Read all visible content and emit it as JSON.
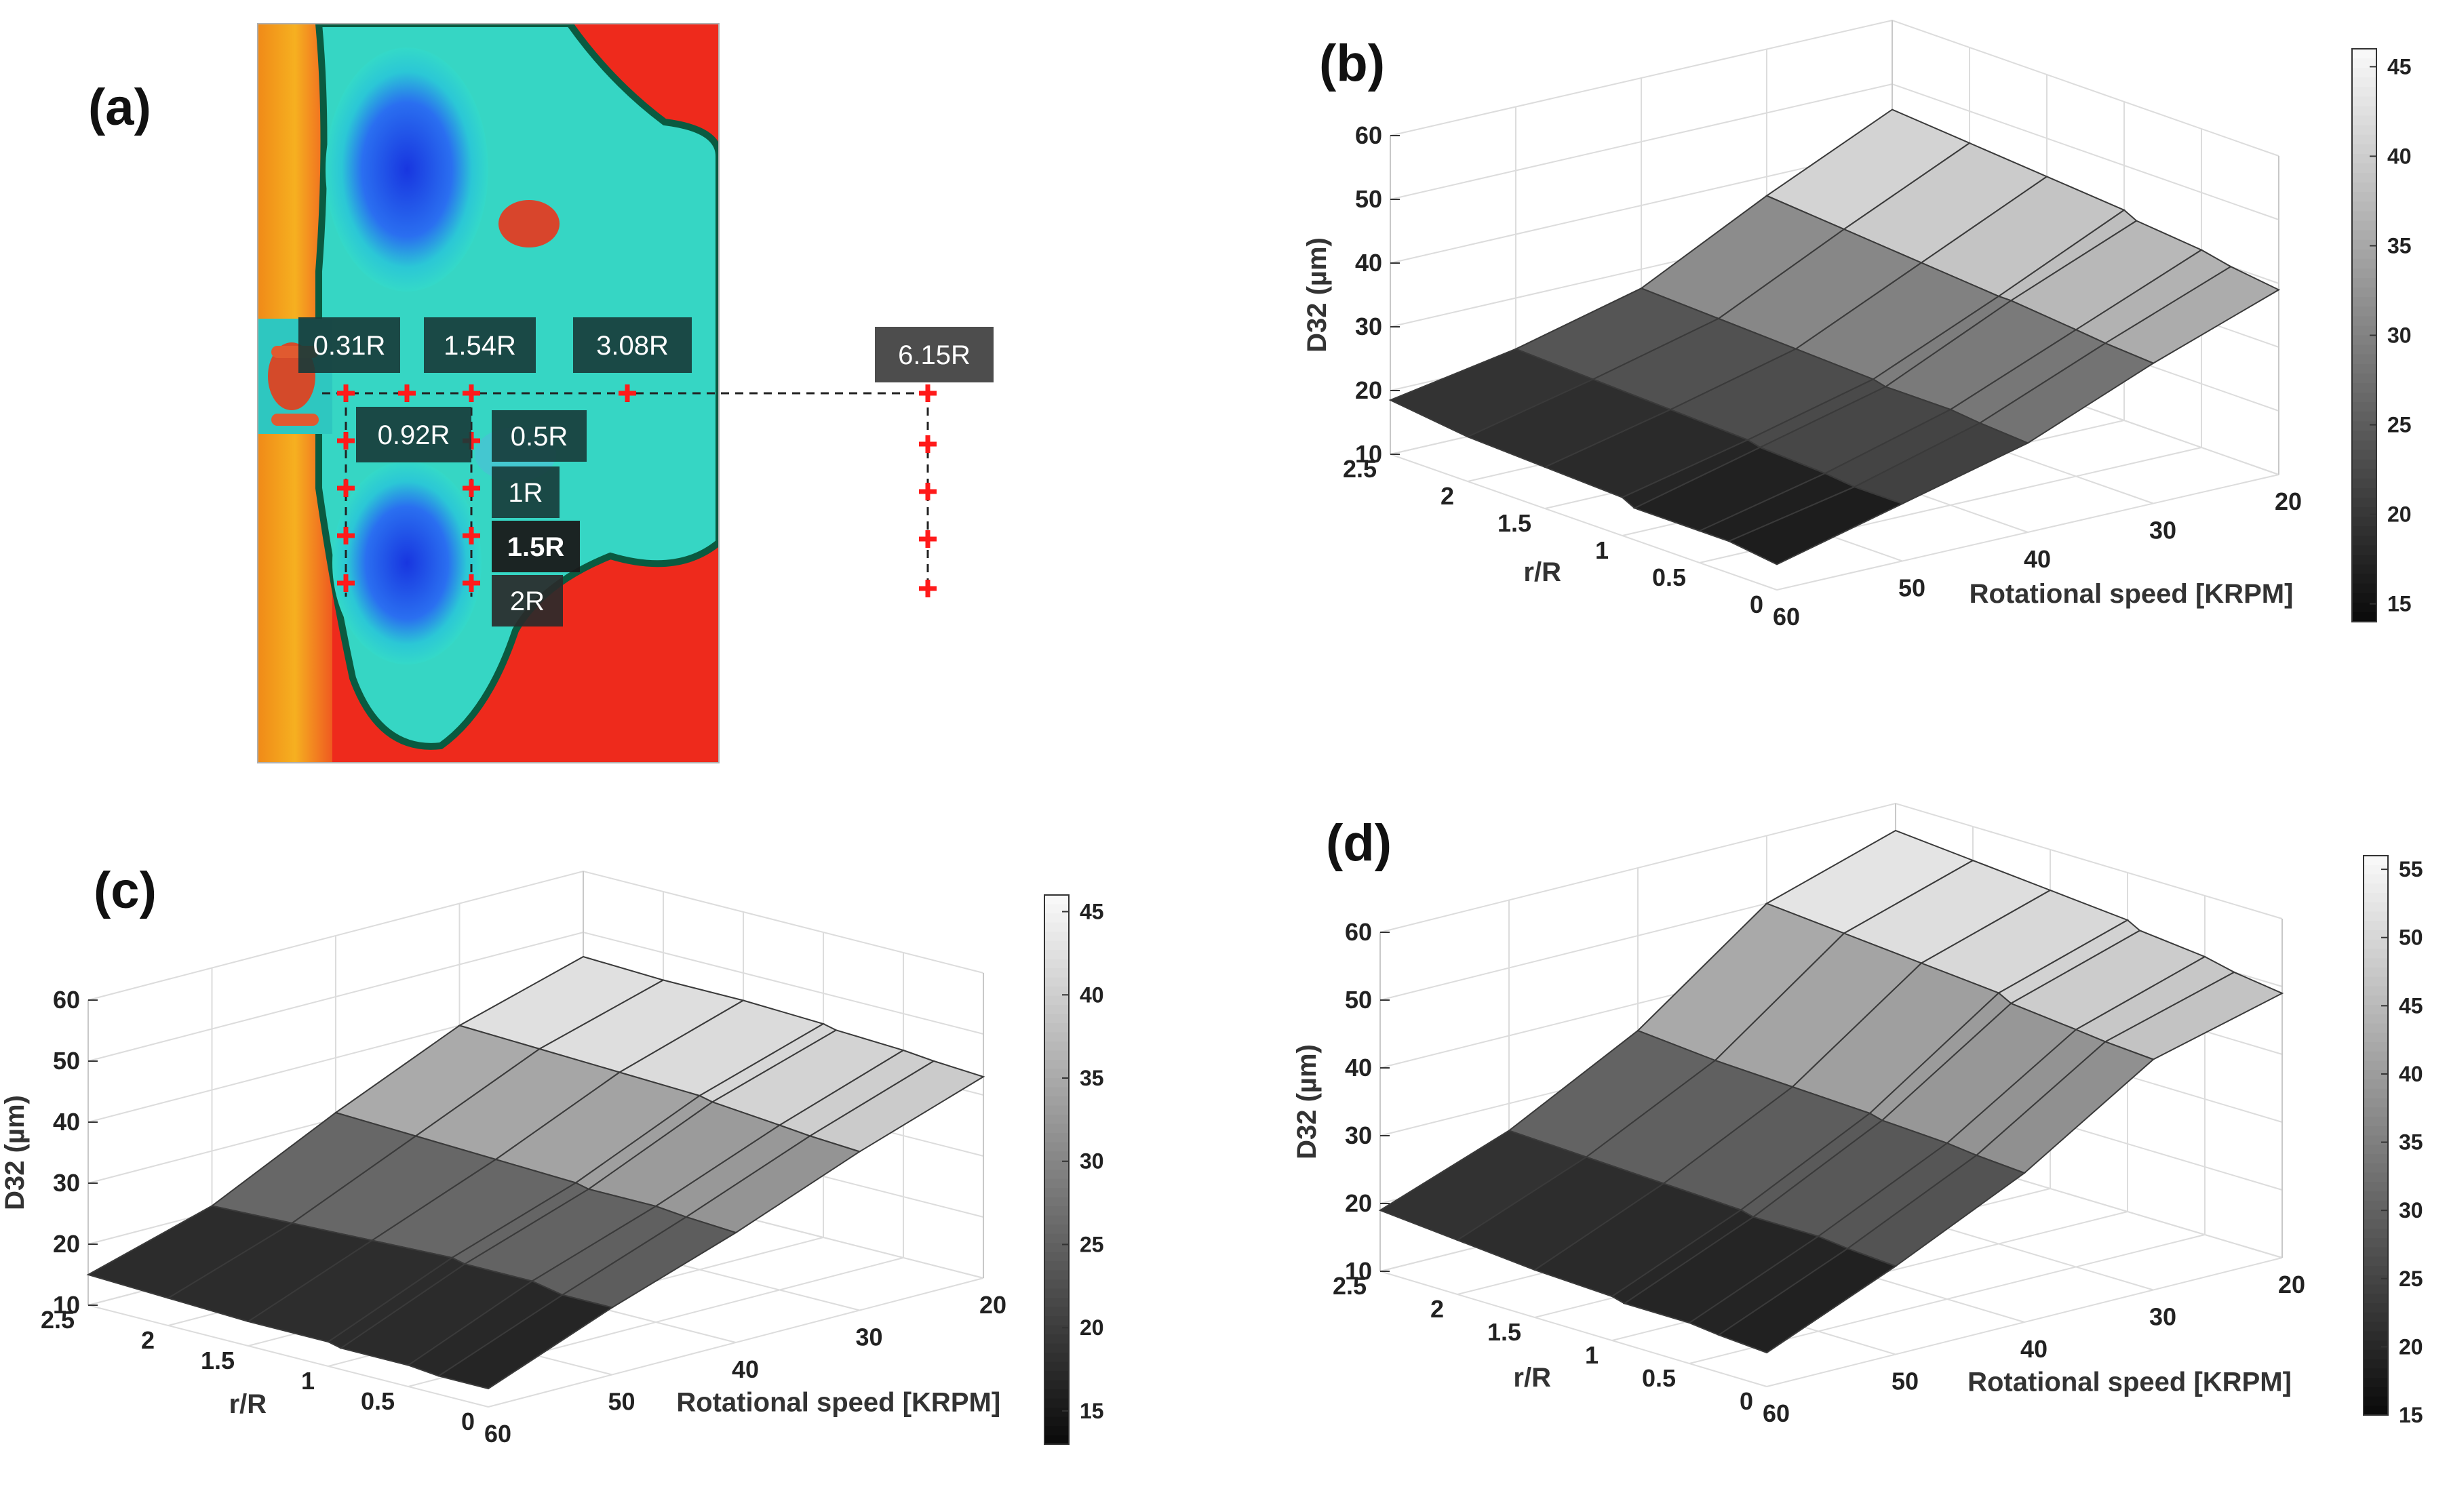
{
  "panel_labels": [
    "(a)",
    "(b)",
    "(c)",
    "(d)"
  ],
  "panel_a": {
    "radial_labels": [
      "0.31R",
      "1.54R",
      "3.08R",
      "6.15R",
      "0.92R",
      "0.5R",
      "1R",
      "1.5R",
      "2R"
    ]
  },
  "chart_data": [
    {
      "type": "surface",
      "panel": "(b)",
      "zlabel": "D32 (µm)",
      "ylabel": "r/R",
      "xlabel": "Rotational speed [KRPM]",
      "zlim": [
        10,
        60
      ],
      "z_ticks": [
        "10",
        "20",
        "30",
        "40",
        "50",
        "60"
      ],
      "r_ticks": [
        "0",
        "0.5",
        "1",
        "1.5",
        "2",
        "2.5"
      ],
      "speed_ticks": [
        "60",
        "50",
        "40",
        "30",
        "20"
      ],
      "colorbar_ticks": [
        "15",
        "20",
        "25",
        "30",
        "35",
        "40",
        "45"
      ],
      "clim": [
        14,
        46
      ],
      "speed": [
        60,
        50,
        40,
        30,
        20
      ],
      "r": [
        0,
        0.31,
        0.5,
        0.92,
        1,
        1.5,
        2,
        2.5
      ],
      "z": [
        [
          14,
          15,
          15,
          15,
          16,
          16.5,
          17,
          18.5
        ],
        [
          19,
          19,
          19.5,
          20,
          20.5,
          21,
          21.5,
          22
        ],
        [
          24,
          24.5,
          25,
          25,
          25.5,
          26,
          26.5,
          27
        ],
        [
          32,
          32.5,
          33,
          34,
          34,
          35,
          36,
          37
        ],
        [
          39,
          40,
          41,
          42,
          43,
          44,
          45,
          46
        ]
      ]
    },
    {
      "type": "surface",
      "panel": "(c)",
      "zlabel": "D32 (µm)",
      "ylabel": "r/R",
      "xlabel": "Rotational speed [KRPM]",
      "zlim": [
        10,
        60
      ],
      "z_ticks": [
        "10",
        "20",
        "30",
        "40",
        "50",
        "60"
      ],
      "r_ticks": [
        "0",
        "0.5",
        "1",
        "1.5",
        "2",
        "2.5"
      ],
      "speed_ticks": [
        "60",
        "50",
        "40",
        "30",
        "20"
      ],
      "colorbar_ticks": [
        "15",
        "20",
        "25",
        "30",
        "35",
        "40",
        "45"
      ],
      "clim": [
        13,
        46
      ],
      "speed": [
        60,
        50,
        40,
        30,
        20
      ],
      "r": [
        0,
        0.31,
        0.5,
        0.92,
        1,
        1.5,
        2,
        2.5
      ],
      "z": [
        [
          13,
          13,
          13.5,
          13.5,
          14,
          14,
          14.5,
          15
        ],
        [
          21,
          21,
          22,
          22,
          22.5,
          22,
          21.5,
          21
        ],
        [
          28,
          28.5,
          29,
          29,
          29.5,
          30,
          30.5,
          31
        ],
        [
          36,
          36.5,
          37,
          38,
          38.5,
          39,
          39.5,
          40
        ],
        [
          43,
          43.5,
          44,
          44.5,
          45,
          45.5,
          45.5,
          46
        ]
      ]
    },
    {
      "type": "surface",
      "panel": "(d)",
      "zlabel": "D32 (µm)",
      "ylabel": "r/R",
      "xlabel": "Rotational speed [KRPM]",
      "zlim": [
        10,
        60
      ],
      "z_ticks": [
        "10",
        "20",
        "30",
        "40",
        "50",
        "60"
      ],
      "r_ticks": [
        "0",
        "0.5",
        "1",
        "1.5",
        "2",
        "2.5"
      ],
      "speed_ticks": [
        "60",
        "50",
        "40",
        "30",
        "20"
      ],
      "colorbar_ticks": [
        "15",
        "20",
        "25",
        "30",
        "35",
        "40",
        "45",
        "50",
        "55"
      ],
      "clim": [
        15,
        56
      ],
      "speed": [
        60,
        50,
        40,
        30,
        20
      ],
      "r": [
        0,
        0.31,
        0.5,
        0.92,
        1,
        1.5,
        2,
        2.5
      ],
      "z": [
        [
          15,
          15.5,
          16,
          16,
          16.5,
          17,
          18,
          19
        ],
        [
          23,
          23.5,
          24,
          24,
          24.5,
          25,
          25.5,
          26
        ],
        [
          32,
          32.5,
          33,
          33.5,
          34,
          34.5,
          35,
          36
        ],
        [
          44,
          44.5,
          45,
          46,
          47,
          48,
          49,
          50
        ],
        [
          49,
          50,
          51,
          52,
          53,
          54,
          55,
          56
        ]
      ]
    }
  ]
}
